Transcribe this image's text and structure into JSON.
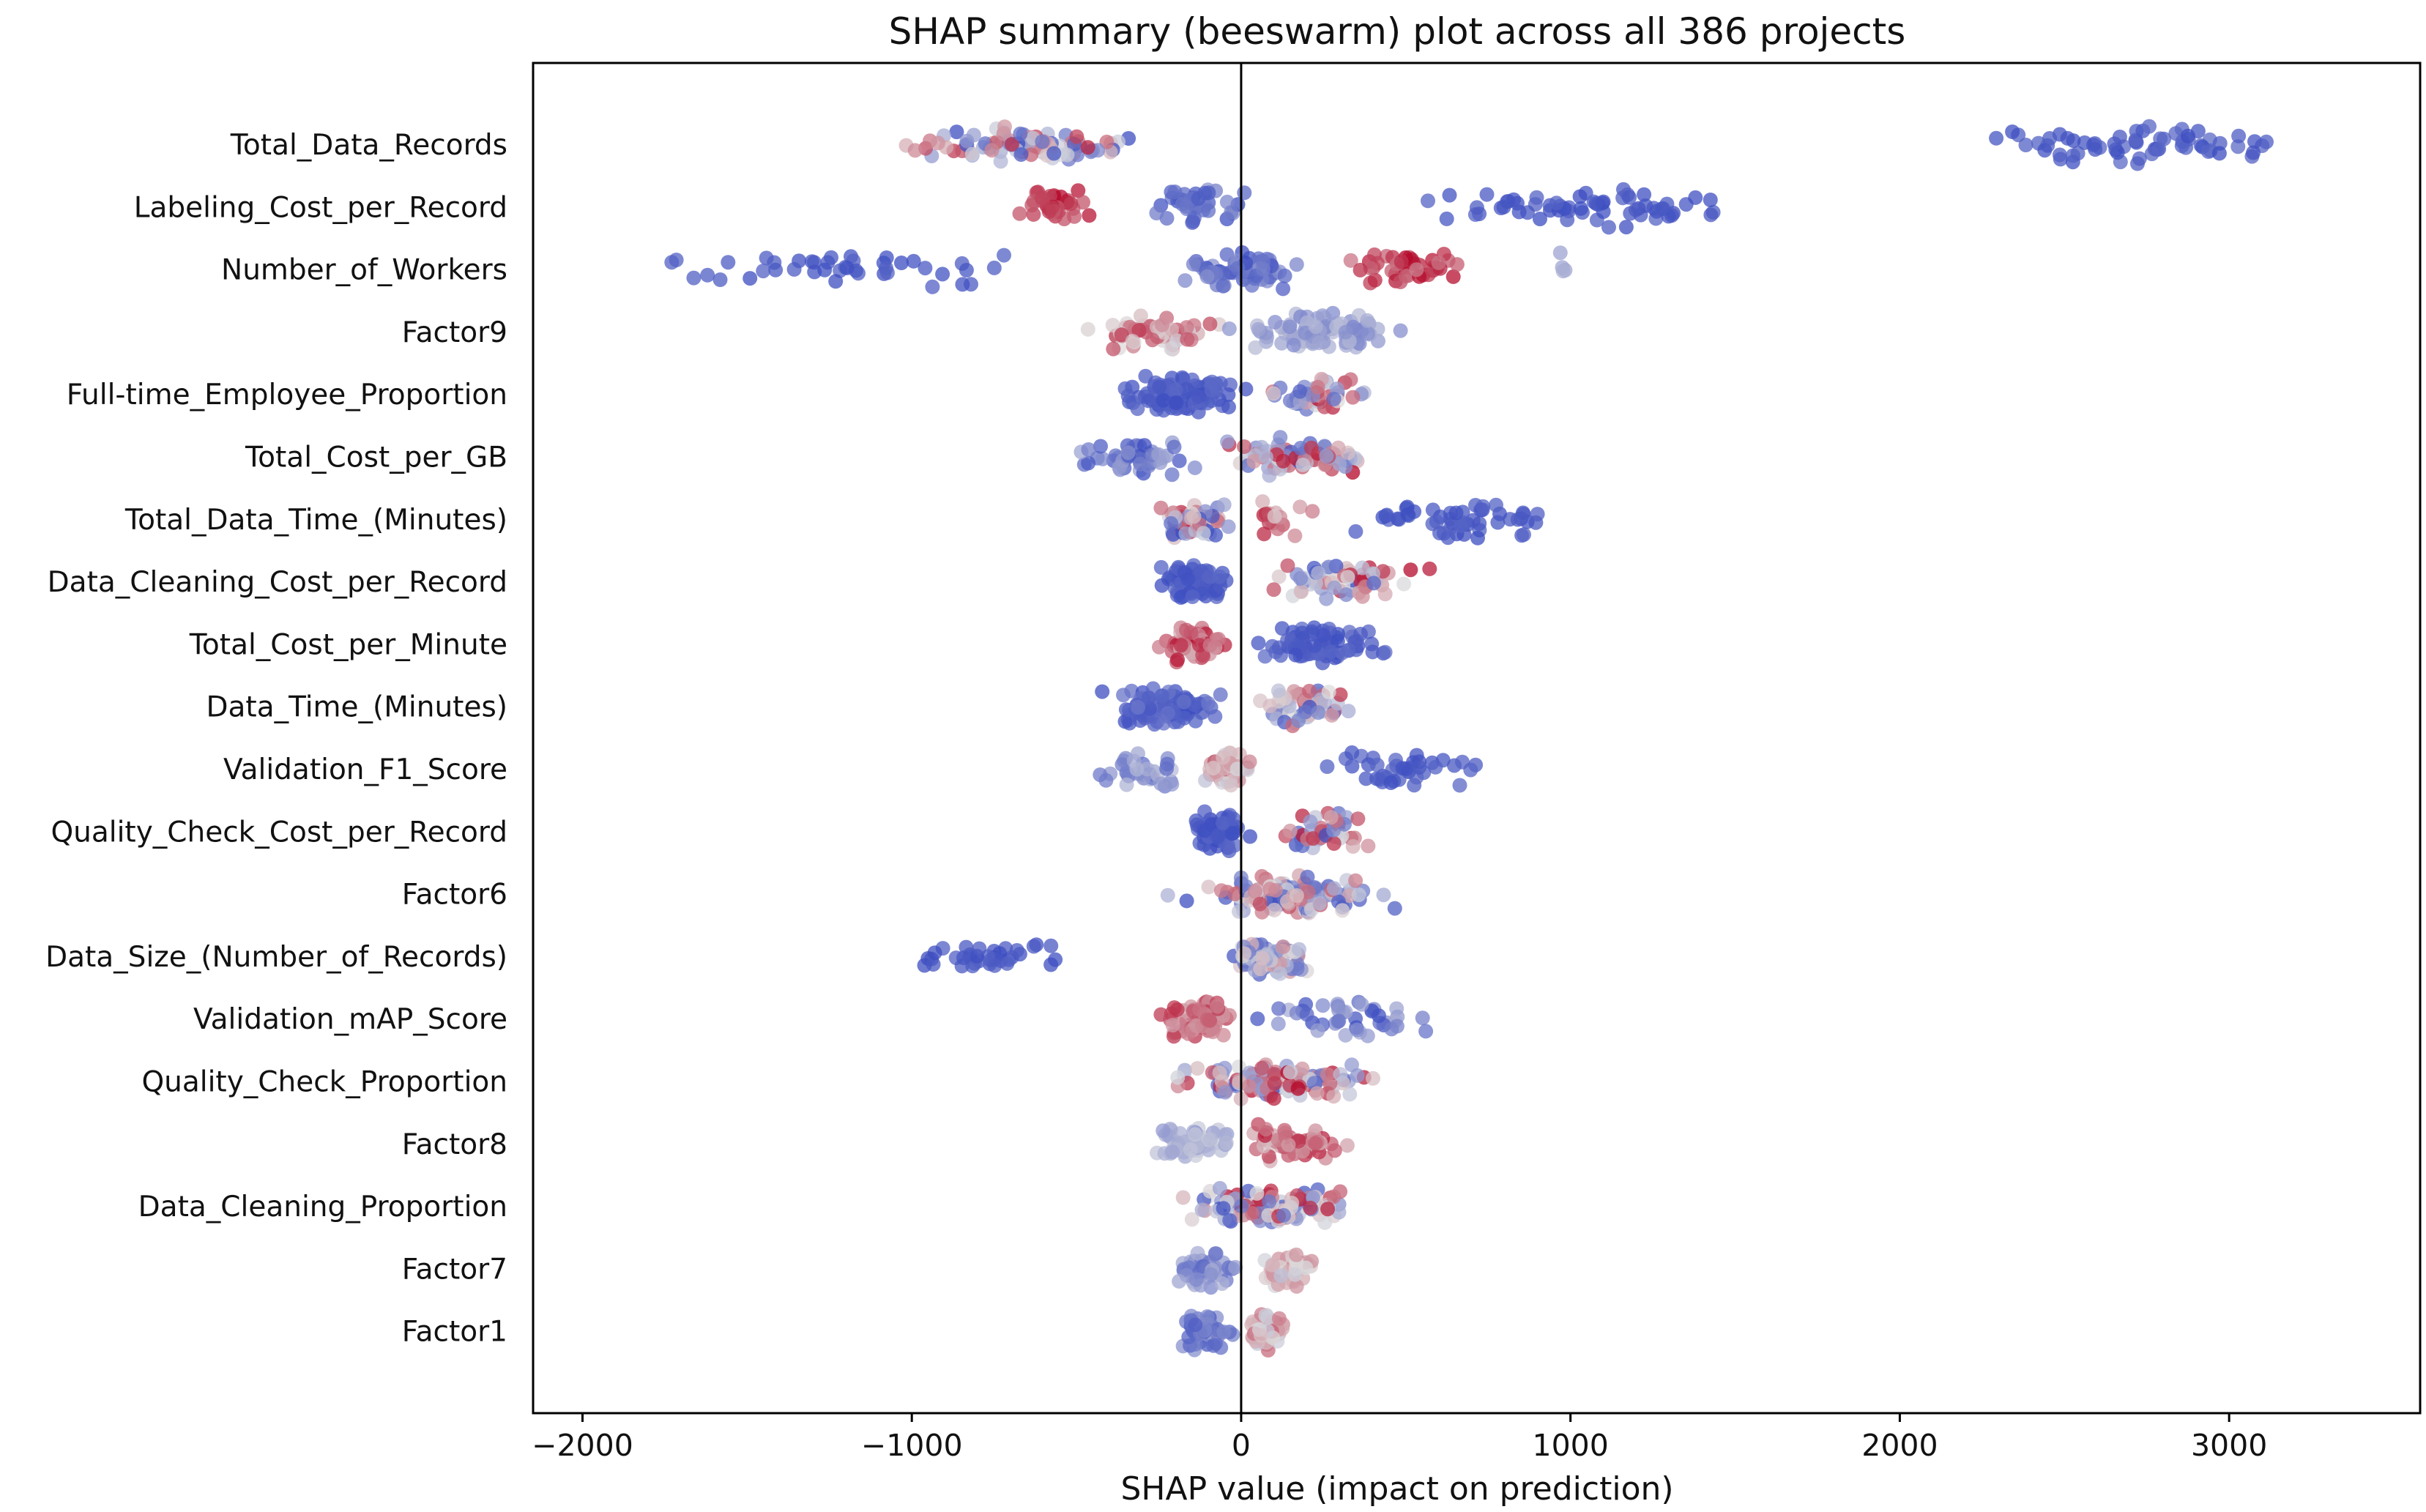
{
  "chart_data": {
    "type": "scatter",
    "subtype": "beeswarm",
    "title": "SHAP summary (beeswarm) plot across all 386 projects",
    "xlabel": "SHAP value (impact on prediction)",
    "ylabel": "",
    "xlim": [
      -2150,
      3580
    ],
    "xticks": [
      -2000,
      -1000,
      0,
      1000,
      2000,
      3000
    ],
    "xtick_labels": [
      "−2000",
      "−1000",
      "0",
      "1000",
      "2000",
      "3000"
    ],
    "zero_line": 0,
    "grid": false,
    "legend": "none",
    "color_map": "coolwarm",
    "color_low": "#3b4cc0",
    "color_mid": "#dddddd",
    "color_high": "#b40426",
    "features": [
      {
        "name": "Total_Data_Records",
        "n": 150,
        "clusters": [
          {
            "lo": -1200,
            "hi": -160,
            "cmin": 0.0,
            "cmax": 0.95,
            "w": 1.0
          },
          {
            "lo": 2020,
            "hi": 3330,
            "cmin": 0.0,
            "cmax": 0.1,
            "w": 0.75
          }
        ]
      },
      {
        "name": "Labeling_Cost_per_Record",
        "n": 140,
        "clusters": [
          {
            "lo": -720,
            "hi": -400,
            "cmin": 0.8,
            "cmax": 1.0,
            "w": 0.45
          },
          {
            "lo": -400,
            "hi": 60,
            "cmin": 0.0,
            "cmax": 0.25,
            "w": 0.45
          },
          {
            "lo": 380,
            "hi": 1660,
            "cmin": 0.0,
            "cmax": 0.08,
            "w": 0.75
          }
        ]
      },
      {
        "name": "Number_of_Workers",
        "n": 160,
        "clusters": [
          {
            "lo": -1880,
            "hi": -500,
            "cmin": 0.0,
            "cmax": 0.08,
            "w": 0.5
          },
          {
            "lo": -250,
            "hi": 250,
            "cmin": 0.0,
            "cmax": 0.25,
            "w": 0.8
          },
          {
            "lo": 250,
            "hi": 800,
            "cmin": 0.7,
            "cmax": 1.0,
            "w": 0.5
          },
          {
            "lo": 960,
            "hi": 1000,
            "cmin": 0.3,
            "cmax": 0.4,
            "w": 0.05
          }
        ]
      },
      {
        "name": "Factor9",
        "n": 140,
        "clusters": [
          {
            "lo": -520,
            "hi": 0,
            "cmin": 0.45,
            "cmax": 0.9,
            "w": 0.45
          },
          {
            "lo": -100,
            "hi": 570,
            "cmin": 0.2,
            "cmax": 0.4,
            "w": 0.8
          }
        ]
      },
      {
        "name": "Full-time_Employee_Proportion",
        "n": 130,
        "clusters": [
          {
            "lo": -430,
            "hi": 60,
            "cmin": 0.0,
            "cmax": 0.1,
            "w": 1.0
          },
          {
            "lo": 60,
            "hi": 400,
            "cmin": 0.0,
            "cmax": 1.0,
            "w": 0.5
          }
        ]
      },
      {
        "name": "Total_Cost_per_GB",
        "n": 130,
        "clusters": [
          {
            "lo": -560,
            "hi": -100,
            "cmin": 0.0,
            "cmax": 0.35,
            "w": 0.5
          },
          {
            "lo": -100,
            "hi": 470,
            "cmin": 0.0,
            "cmax": 1.0,
            "w": 0.8
          }
        ]
      },
      {
        "name": "Total_Data_Time_(Minutes)",
        "n": 130,
        "clusters": [
          {
            "lo": -300,
            "hi": 0,
            "cmin": 0.0,
            "cmax": 1.0,
            "w": 0.7
          },
          {
            "lo": 0,
            "hi": 250,
            "cmin": 0.5,
            "cmax": 0.95,
            "w": 0.2
          },
          {
            "lo": 250,
            "hi": 1060,
            "cmin": 0.0,
            "cmax": 0.08,
            "w": 0.6
          }
        ]
      },
      {
        "name": "Data_Cleaning_Cost_per_Record",
        "n": 130,
        "clusters": [
          {
            "lo": -270,
            "hi": 0,
            "cmin": 0.0,
            "cmax": 0.1,
            "w": 0.8
          },
          {
            "lo": 0,
            "hi": 640,
            "cmin": 0.0,
            "cmax": 1.0,
            "w": 0.6
          }
        ]
      },
      {
        "name": "Total_Cost_per_Minute",
        "n": 130,
        "clusters": [
          {
            "lo": -280,
            "hi": -20,
            "cmin": 0.6,
            "cmax": 1.0,
            "w": 0.6
          },
          {
            "lo": -20,
            "hi": 490,
            "cmin": 0.0,
            "cmax": 0.12,
            "w": 0.8
          }
        ]
      },
      {
        "name": "Data_Time_(Minutes)",
        "n": 130,
        "clusters": [
          {
            "lo": -480,
            "hi": 0,
            "cmin": 0.0,
            "cmax": 0.15,
            "w": 0.8
          },
          {
            "lo": 0,
            "hi": 360,
            "cmin": 0.0,
            "cmax": 0.9,
            "w": 0.5
          }
        ]
      },
      {
        "name": "Validation_F1_Score",
        "n": 120,
        "clusters": [
          {
            "lo": -520,
            "hi": -120,
            "cmin": 0.1,
            "cmax": 0.4,
            "w": 0.4
          },
          {
            "lo": -150,
            "hi": 80,
            "cmin": 0.4,
            "cmax": 0.8,
            "w": 0.6
          },
          {
            "lo": 80,
            "hi": 830,
            "cmin": 0.0,
            "cmax": 0.1,
            "w": 0.5
          }
        ]
      },
      {
        "name": "Quality_Check_Cost_per_Record",
        "n": 110,
        "clusters": [
          {
            "lo": -160,
            "hi": 30,
            "cmin": 0.0,
            "cmax": 0.1,
            "w": 1.0
          },
          {
            "lo": 30,
            "hi": 440,
            "cmin": 0.0,
            "cmax": 1.0,
            "w": 0.55
          }
        ]
      },
      {
        "name": "Factor6",
        "n": 110,
        "clusters": [
          {
            "lo": -250,
            "hi": 540,
            "cmin": 0.0,
            "cmax": 0.85,
            "w": 0.8
          }
        ]
      },
      {
        "name": "Data_Size_(Number_of_Records)",
        "n": 110,
        "clusters": [
          {
            "lo": -1150,
            "hi": -350,
            "cmin": 0.0,
            "cmax": 0.08,
            "w": 0.45
          },
          {
            "lo": -60,
            "hi": 230,
            "cmin": 0.0,
            "cmax": 0.7,
            "w": 0.9
          }
        ]
      },
      {
        "name": "Validation_mAP_Score",
        "n": 110,
        "clusters": [
          {
            "lo": -260,
            "hi": 0,
            "cmin": 0.65,
            "cmax": 0.9,
            "w": 0.8
          },
          {
            "lo": 0,
            "hi": 680,
            "cmin": 0.0,
            "cmax": 0.35,
            "w": 0.5
          }
        ]
      },
      {
        "name": "Quality_Check_Proportion",
        "n": 110,
        "clusters": [
          {
            "lo": -270,
            "hi": 460,
            "cmin": 0.0,
            "cmax": 1.0,
            "w": 0.8
          }
        ]
      },
      {
        "name": "Factor8",
        "n": 110,
        "clusters": [
          {
            "lo": -290,
            "hi": 0,
            "cmin": 0.25,
            "cmax": 0.45,
            "w": 0.8
          },
          {
            "lo": 0,
            "hi": 380,
            "cmin": 0.55,
            "cmax": 0.95,
            "w": 0.8
          }
        ]
      },
      {
        "name": "Data_Cleaning_Proportion",
        "n": 110,
        "clusters": [
          {
            "lo": -240,
            "hi": 410,
            "cmin": 0.0,
            "cmax": 1.0,
            "w": 0.8
          }
        ]
      },
      {
        "name": "Factor7",
        "n": 100,
        "clusters": [
          {
            "lo": -240,
            "hi": 0,
            "cmin": 0.1,
            "cmax": 0.35,
            "w": 0.8
          },
          {
            "lo": 0,
            "hi": 270,
            "cmin": 0.4,
            "cmax": 0.7,
            "w": 0.8
          }
        ]
      },
      {
        "name": "Factor1",
        "n": 100,
        "clusters": [
          {
            "lo": -230,
            "hi": 0,
            "cmin": 0.05,
            "cmax": 0.3,
            "w": 0.8
          },
          {
            "lo": 0,
            "hi": 160,
            "cmin": 0.4,
            "cmax": 0.8,
            "w": 0.8
          }
        ]
      }
    ]
  }
}
